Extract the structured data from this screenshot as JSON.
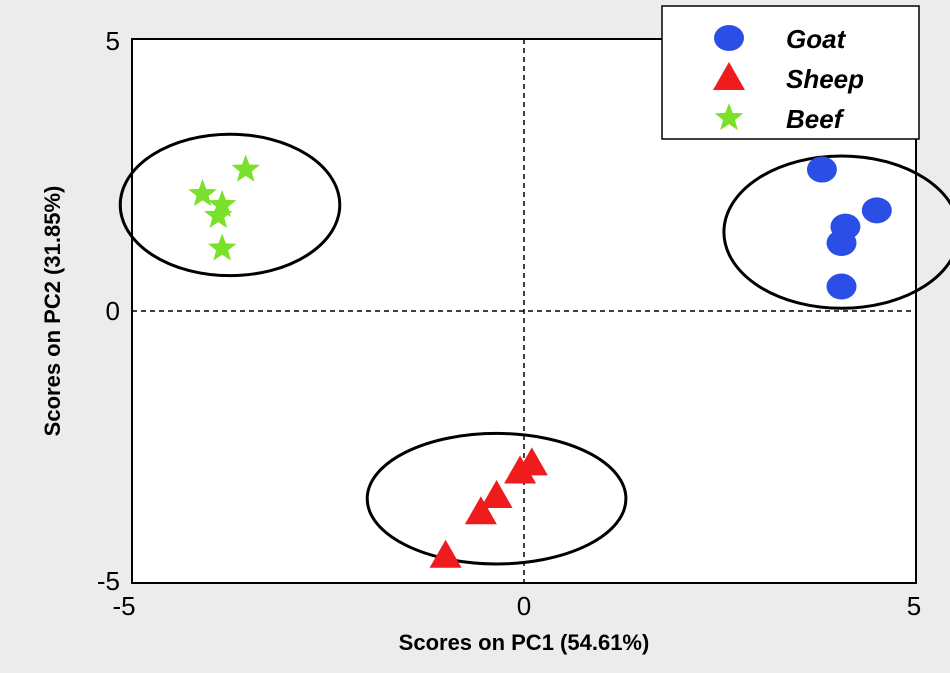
{
  "chart_data": {
    "type": "scatter",
    "title": "",
    "xlabel": "Scores on PC1 (54.61%)",
    "ylabel": "Scores on PC2 (31.85%)",
    "xlim": [
      -5,
      5
    ],
    "ylim": [
      -5,
      5
    ],
    "xticks": [
      "-5",
      "0",
      "5"
    ],
    "yticks": [
      "-5",
      "0",
      "5"
    ],
    "grid": false,
    "zero_lines": "dashed",
    "legend_position": "top-right",
    "series": [
      {
        "name": "Goat",
        "marker": "circle",
        "color": "#2b4fe6",
        "points": [
          [
            3.8,
            2.6
          ],
          [
            4.5,
            1.85
          ],
          [
            4.1,
            1.55
          ],
          [
            4.05,
            1.25
          ],
          [
            4.05,
            0.45
          ]
        ]
      },
      {
        "name": "Sheep",
        "marker": "triangle",
        "color": "#ee1c1c",
        "points": [
          [
            0.1,
            -2.8
          ],
          [
            -0.05,
            -2.95
          ],
          [
            -0.35,
            -3.4
          ],
          [
            -0.55,
            -3.7
          ],
          [
            -1.0,
            -4.5
          ]
        ]
      },
      {
        "name": "Beef",
        "marker": "star",
        "color": "#7ae12b",
        "points": [
          [
            -3.55,
            2.6
          ],
          [
            -4.1,
            2.15
          ],
          [
            -3.85,
            1.95
          ],
          [
            -3.9,
            1.75
          ],
          [
            -3.85,
            1.15
          ]
        ]
      }
    ],
    "ellipses": [
      {
        "group": "Beef",
        "cx": -3.75,
        "cy": 1.95,
        "rx": 1.4,
        "ry": 1.3
      },
      {
        "group": "Goat",
        "cx": 4.05,
        "cy": 1.45,
        "rx": 1.5,
        "ry": 1.4
      },
      {
        "group": "Sheep",
        "cx": -0.35,
        "cy": -3.45,
        "rx": 1.65,
        "ry": 1.2
      }
    ]
  }
}
